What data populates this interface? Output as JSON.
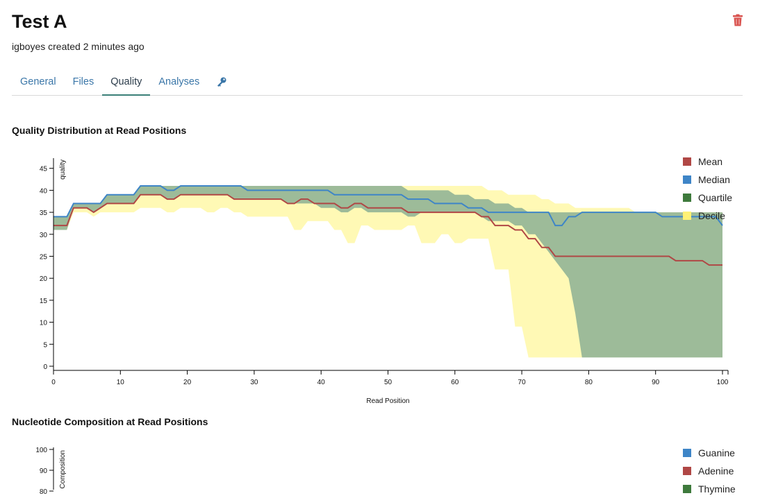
{
  "header": {
    "title": "Test A",
    "subtitle": "igboyes created 2 minutes ago"
  },
  "tabs": [
    "General",
    "Files",
    "Quality",
    "Analyses"
  ],
  "active_tab": "Quality",
  "icons": {
    "delete": "trash-icon",
    "key": "key-icon"
  },
  "colors": {
    "mean": "#b04745",
    "median": "#3e85c7",
    "quartile": "#3e7a3c",
    "quartile_fill": "#9dbb99",
    "decile": "#fff9b5",
    "tab_active": "#3a7f78",
    "link": "#3a76a8",
    "delete": "#d9534f"
  },
  "quality_chart": {
    "title": "Quality Distribution at Read Positions",
    "chart_data": {
      "type": "area",
      "xlabel": "Read Position",
      "ylabel": "quality",
      "xlim": [
        0,
        100
      ],
      "ylim": [
        0,
        47
      ],
      "xticks": [
        0,
        10,
        20,
        30,
        40,
        50,
        60,
        70,
        80,
        90,
        100
      ],
      "yticks": [
        0,
        5,
        10,
        15,
        20,
        25,
        30,
        35,
        40,
        45
      ],
      "legend": [
        {
          "name": "Mean",
          "color": "#b04745"
        },
        {
          "name": "Median",
          "color": "#3e85c7"
        },
        {
          "name": "Quartile",
          "color": "#3e7a3c"
        },
        {
          "name": "Decile",
          "color": "#fff9b5"
        }
      ],
      "series": [
        {
          "name": "Mean",
          "points": [
            [
              0,
              32
            ],
            [
              2,
              32
            ],
            [
              3,
              36
            ],
            [
              5,
              36
            ],
            [
              6,
              35
            ],
            [
              7,
              36
            ],
            [
              8,
              37
            ],
            [
              12,
              37
            ],
            [
              13,
              39
            ],
            [
              16,
              39
            ],
            [
              17,
              38
            ],
            [
              18,
              38
            ],
            [
              19,
              39
            ],
            [
              26,
              39
            ],
            [
              27,
              38
            ],
            [
              34,
              38
            ],
            [
              35,
              37
            ],
            [
              36,
              37
            ],
            [
              37,
              38
            ],
            [
              38,
              38
            ],
            [
              39,
              37
            ],
            [
              41,
              37
            ],
            [
              42,
              37
            ],
            [
              43,
              36
            ],
            [
              44,
              36
            ],
            [
              45,
              37
            ],
            [
              46,
              37
            ],
            [
              47,
              36
            ],
            [
              52,
              36
            ],
            [
              53,
              35
            ],
            [
              63,
              35
            ],
            [
              64,
              34
            ],
            [
              65,
              34
            ],
            [
              66,
              32
            ],
            [
              68,
              32
            ],
            [
              69,
              31
            ],
            [
              70,
              31
            ],
            [
              71,
              29
            ],
            [
              72,
              29
            ],
            [
              73,
              27
            ],
            [
              74,
              27
            ],
            [
              75,
              25
            ],
            [
              92,
              25
            ],
            [
              93,
              24
            ],
            [
              97,
              24
            ],
            [
              98,
              23
            ],
            [
              100,
              23
            ]
          ]
        },
        {
          "name": "Median",
          "points": [
            [
              0,
              34
            ],
            [
              2,
              34
            ],
            [
              3,
              37
            ],
            [
              7,
              37
            ],
            [
              8,
              39
            ],
            [
              12,
              39
            ],
            [
              13,
              41
            ],
            [
              16,
              41
            ],
            [
              17,
              40
            ],
            [
              18,
              40
            ],
            [
              19,
              41
            ],
            [
              28,
              41
            ],
            [
              29,
              40
            ],
            [
              41,
              40
            ],
            [
              42,
              39
            ],
            [
              52,
              39
            ],
            [
              53,
              38
            ],
            [
              56,
              38
            ],
            [
              57,
              37
            ],
            [
              61,
              37
            ],
            [
              62,
              36
            ],
            [
              64,
              36
            ],
            [
              65,
              35
            ],
            [
              74,
              35
            ],
            [
              75,
              32
            ],
            [
              76,
              32
            ],
            [
              77,
              34
            ],
            [
              78,
              34
            ],
            [
              79,
              35
            ],
            [
              90,
              35
            ],
            [
              91,
              34
            ],
            [
              99,
              34
            ],
            [
              100,
              32
            ]
          ]
        },
        {
          "name": "Quartile",
          "upper": [
            [
              0,
              34
            ],
            [
              2,
              34
            ],
            [
              3,
              37
            ],
            [
              7,
              37
            ],
            [
              8,
              39
            ],
            [
              12,
              39
            ],
            [
              13,
              41
            ],
            [
              16,
              41
            ],
            [
              17,
              41
            ],
            [
              52,
              41
            ],
            [
              53,
              40
            ],
            [
              59,
              40
            ],
            [
              60,
              39
            ],
            [
              62,
              39
            ],
            [
              63,
              38
            ],
            [
              65,
              38
            ],
            [
              66,
              37
            ],
            [
              68,
              37
            ],
            [
              69,
              36
            ],
            [
              70,
              36
            ],
            [
              71,
              35
            ],
            [
              100,
              35
            ]
          ],
          "lower": [
            [
              0,
              31
            ],
            [
              2,
              31
            ],
            [
              3,
              36
            ],
            [
              5,
              36
            ],
            [
              6,
              35
            ],
            [
              7,
              36
            ],
            [
              8,
              37
            ],
            [
              12,
              37
            ],
            [
              13,
              39
            ],
            [
              16,
              39
            ],
            [
              17,
              38
            ],
            [
              18,
              38
            ],
            [
              19,
              39
            ],
            [
              26,
              39
            ],
            [
              27,
              38
            ],
            [
              34,
              38
            ],
            [
              35,
              37
            ],
            [
              36,
              37
            ],
            [
              38,
              37
            ],
            [
              39,
              37
            ],
            [
              40,
              36
            ],
            [
              42,
              36
            ],
            [
              43,
              35
            ],
            [
              44,
              35
            ],
            [
              45,
              36
            ],
            [
              46,
              36
            ],
            [
              47,
              35
            ],
            [
              52,
              35
            ],
            [
              53,
              34
            ],
            [
              54,
              34
            ],
            [
              55,
              35
            ],
            [
              63,
              35
            ],
            [
              64,
              34
            ],
            [
              65,
              33
            ],
            [
              68,
              33
            ],
            [
              69,
              32
            ],
            [
              70,
              32
            ],
            [
              71,
              30
            ],
            [
              72,
              30
            ],
            [
              73,
              28
            ],
            [
              74,
              26
            ],
            [
              75,
              24
            ],
            [
              76,
              22
            ],
            [
              77,
              20
            ],
            [
              78,
              12
            ],
            [
              79,
              2
            ],
            [
              100,
              2
            ]
          ]
        },
        {
          "name": "Decile",
          "upper": [
            [
              0,
              34
            ],
            [
              2,
              34
            ],
            [
              3,
              37
            ],
            [
              7,
              37
            ],
            [
              8,
              38
            ],
            [
              12,
              38
            ],
            [
              13,
              40
            ],
            [
              16,
              40
            ],
            [
              17,
              41
            ],
            [
              52,
              41
            ],
            [
              53,
              41
            ],
            [
              64,
              41
            ],
            [
              65,
              40
            ],
            [
              67,
              40
            ],
            [
              68,
              39
            ],
            [
              72,
              39
            ],
            [
              73,
              38
            ],
            [
              74,
              38
            ],
            [
              75,
              37
            ],
            [
              77,
              37
            ],
            [
              78,
              36
            ],
            [
              86,
              36
            ],
            [
              87,
              35
            ],
            [
              100,
              35
            ]
          ],
          "lower": [
            [
              0,
              31
            ],
            [
              2,
              31
            ],
            [
              3,
              35
            ],
            [
              5,
              35
            ],
            [
              6,
              34
            ],
            [
              7,
              35
            ],
            [
              12,
              35
            ],
            [
              13,
              36
            ],
            [
              16,
              36
            ],
            [
              17,
              35
            ],
            [
              18,
              35
            ],
            [
              19,
              36
            ],
            [
              22,
              36
            ],
            [
              23,
              35
            ],
            [
              24,
              35
            ],
            [
              25,
              36
            ],
            [
              26,
              36
            ],
            [
              27,
              35
            ],
            [
              28,
              35
            ],
            [
              29,
              34
            ],
            [
              35,
              34
            ],
            [
              36,
              31
            ],
            [
              37,
              31
            ],
            [
              38,
              33
            ],
            [
              41,
              33
            ],
            [
              42,
              31
            ],
            [
              43,
              31
            ],
            [
              44,
              28
            ],
            [
              45,
              28
            ],
            [
              46,
              32
            ],
            [
              47,
              32
            ],
            [
              48,
              31
            ],
            [
              52,
              31
            ],
            [
              53,
              32
            ],
            [
              54,
              32
            ],
            [
              55,
              28
            ],
            [
              57,
              28
            ],
            [
              58,
              30
            ],
            [
              59,
              30
            ],
            [
              60,
              28
            ],
            [
              61,
              28
            ],
            [
              62,
              29
            ],
            [
              65,
              29
            ],
            [
              66,
              22
            ],
            [
              68,
              22
            ],
            [
              69,
              9
            ],
            [
              70,
              9
            ],
            [
              71,
              2
            ],
            [
              79,
              2
            ]
          ]
        }
      ]
    }
  },
  "nucleotide_chart": {
    "title": "Nucleotide Composition at Read Positions",
    "chart_data": {
      "type": "line",
      "ylabel": "Composition",
      "yticks_visible": [
        100,
        90,
        80
      ],
      "legend": [
        {
          "name": "Guanine",
          "color": "#3e85c7"
        },
        {
          "name": "Adenine",
          "color": "#b04745"
        },
        {
          "name": "Thymine",
          "color": "#3e7a3c"
        }
      ]
    }
  }
}
